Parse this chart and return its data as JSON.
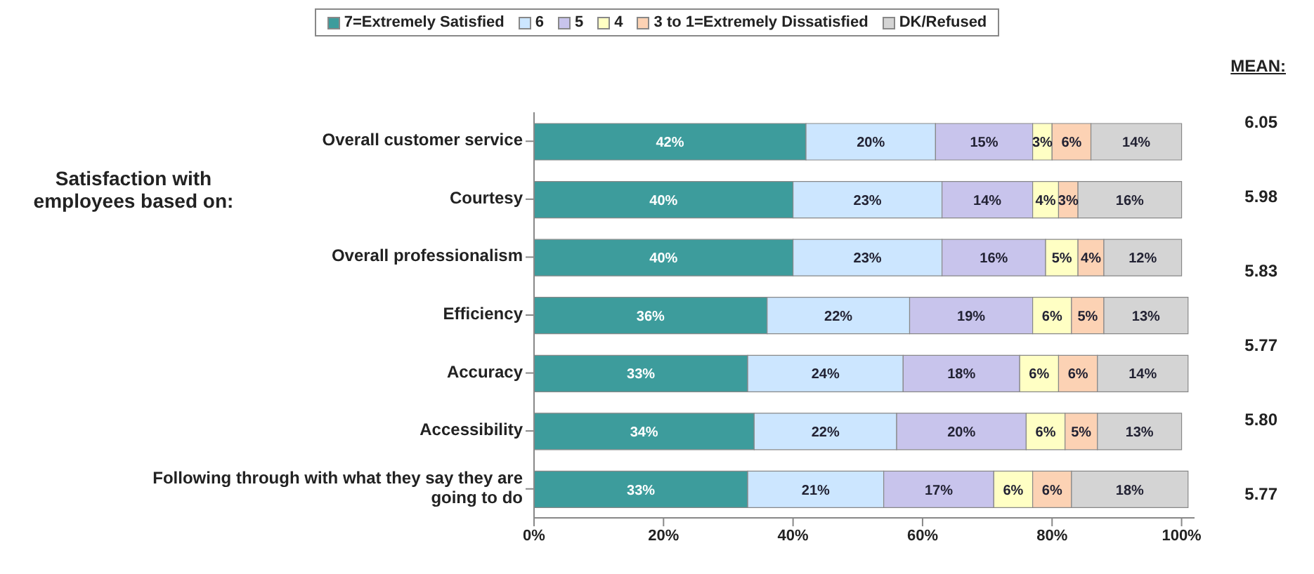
{
  "chart_data": {
    "type": "bar",
    "orientation": "horizontal",
    "stacked": true,
    "categories": [
      "Overall customer service",
      "Courtesy",
      "Overall professionalism",
      "Efficiency",
      "Accuracy",
      "Accessibility",
      "Following through with what they say they are going to do"
    ],
    "series": [
      {
        "name": "7=Extremely Satisfied",
        "color": "#3d9c9c",
        "values": [
          42,
          40,
          40,
          36,
          33,
          34,
          33
        ],
        "value_labels": [
          "42%",
          "40%",
          "40%",
          "36%",
          "33%",
          "34%",
          "33%"
        ]
      },
      {
        "name": "6",
        "color": "#cce6ff",
        "values": [
          20,
          23,
          23,
          22,
          24,
          22,
          21
        ],
        "value_labels": [
          "20%",
          "23%",
          "23%",
          "22%",
          "24%",
          "22%",
          "21%"
        ]
      },
      {
        "name": "5",
        "color": "#c8c4ec",
        "values": [
          15,
          14,
          16,
          19,
          18,
          20,
          17
        ],
        "value_labels": [
          "15%",
          "14%",
          "16%",
          "19%",
          "18%",
          "20%",
          "17%"
        ]
      },
      {
        "name": "4",
        "color": "#ffffc4",
        "values": [
          3,
          4,
          5,
          6,
          6,
          6,
          6
        ],
        "value_labels": [
          "3%",
          "4%",
          "5%",
          "6%",
          "6%",
          "6%",
          "6%"
        ]
      },
      {
        "name": "3 to 1=Extremely Dissatisfied",
        "color": "#fcd2b4",
        "values": [
          6,
          3,
          4,
          5,
          6,
          5,
          6
        ],
        "value_labels": [
          "6%",
          "3%",
          "4%",
          "5%",
          "6%",
          "5%",
          "6%"
        ]
      },
      {
        "name": "DK/Refused",
        "color": "#d4d4d4",
        "values": [
          14,
          16,
          12,
          13,
          14,
          13,
          18
        ],
        "value_labels": [
          "14%",
          "16%",
          "12%",
          "13%",
          "14%",
          "13%",
          "18%"
        ]
      }
    ],
    "xlim": [
      0,
      102
    ],
    "xticks": [
      {
        "value": 0,
        "label": "0%"
      },
      {
        "value": 20,
        "label": "20%"
      },
      {
        "value": 40,
        "label": "40%"
      },
      {
        "value": 60,
        "label": "60%"
      },
      {
        "value": 80,
        "label": "80%"
      },
      {
        "value": 100,
        "label": "100%"
      }
    ],
    "legend": "top",
    "grid": false,
    "annotations": [
      "Satisfaction with employees based on:",
      "MEAN:",
      "6.05",
      "5.98",
      "5.83",
      "5.77",
      "5.80",
      "5.77"
    ]
  }
}
